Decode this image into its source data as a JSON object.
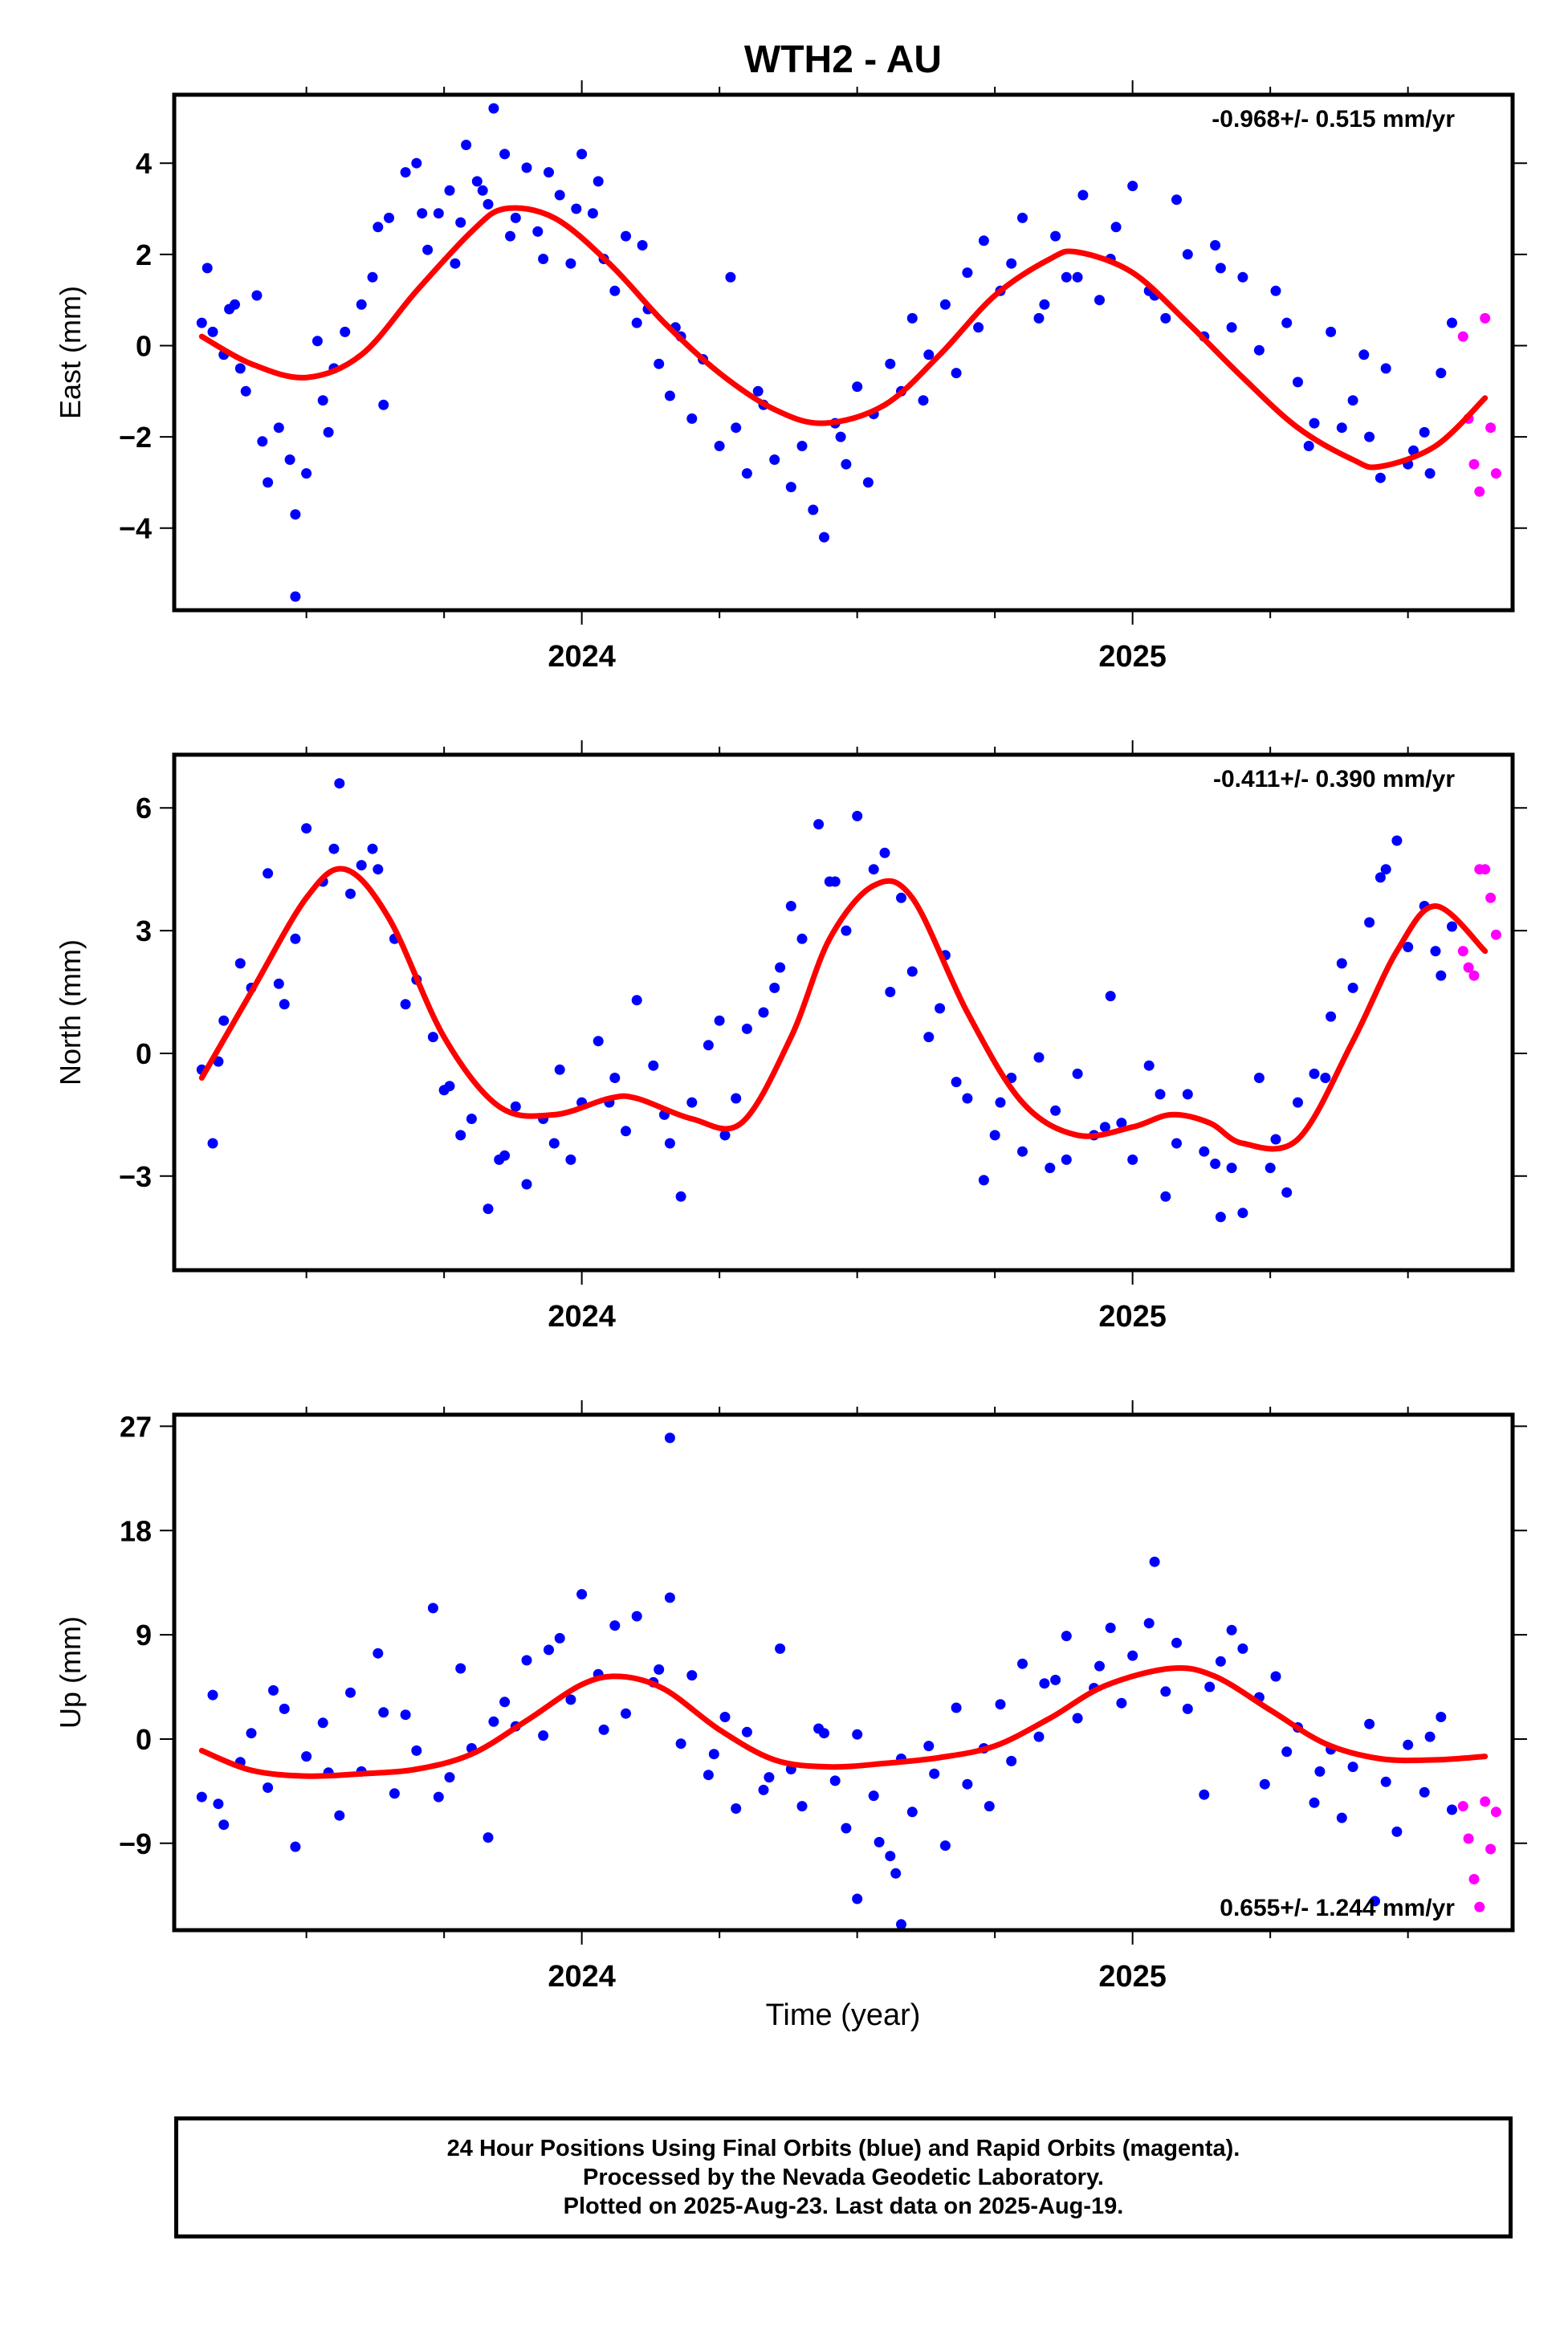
{
  "title": "WTH2 - AU",
  "xlabel": "Time (year)",
  "footer": {
    "line1": "24 Hour Positions Using Final Orbits (blue) and Rapid Orbits (magenta).",
    "line2": "Processed by the Nevada Geodetic Laboratory.",
    "line3": "Plotted on 2025-Aug-23. Last data on 2025-Aug-19."
  },
  "colors": {
    "final": "#0000ff",
    "rapid": "#ff00ff",
    "fit": "#ff0000",
    "axis": "#000000"
  },
  "chart_data": [
    {
      "type": "scatter",
      "component": "East",
      "ylabel": "East (mm)",
      "rate": "-0.968+/- 0.515 mm/yr",
      "rate_position": "top-right",
      "xlim": [
        2023.26,
        2025.69
      ],
      "ylim": [
        -5.8,
        5.5
      ],
      "yticks": [
        -4,
        -2,
        0,
        2,
        4
      ],
      "yticklabels": [
        "−4",
        "−2",
        "0",
        "2",
        "4"
      ],
      "xticks": [
        2024,
        2025
      ],
      "xticklabels": [
        "2024",
        "2025"
      ],
      "fit_curve": {
        "x": [
          2023.31,
          2023.4,
          2023.5,
          2023.6,
          2023.7,
          2023.8,
          2023.86,
          2023.95,
          2024.05,
          2024.15,
          2024.25,
          2024.35,
          2024.44,
          2024.55,
          2024.65,
          2024.75,
          2024.85,
          2024.9,
          2025.0,
          2025.1,
          2025.2,
          2025.3,
          2025.4,
          2025.45,
          2025.55,
          2025.64
        ],
        "y": [
          0.2,
          -0.4,
          -0.7,
          -0.2,
          1.2,
          2.5,
          3.0,
          2.8,
          1.8,
          0.5,
          -0.6,
          -1.4,
          -1.7,
          -1.3,
          -0.2,
          1.1,
          1.9,
          2.05,
          1.6,
          0.5,
          -0.7,
          -1.8,
          -2.5,
          -2.65,
          -2.2,
          -1.15
        ]
      },
      "final_series": {
        "x": [
          2023.31,
          2023.32,
          2023.33,
          2023.35,
          2023.37,
          2023.38,
          2023.39,
          2023.42,
          2023.43,
          2023.45,
          2023.47,
          2023.48,
          2023.5,
          2023.52,
          2023.53,
          2023.55,
          2023.57,
          2023.6,
          2023.62,
          2023.63,
          2023.65,
          2023.68,
          2023.7,
          2023.72,
          2023.74,
          2023.76,
          2023.78,
          2023.79,
          2023.81,
          2023.83,
          2023.84,
          2023.86,
          2023.88,
          2023.9,
          2023.92,
          2023.94,
          2023.96,
          2023.98,
          2024.0,
          2024.02,
          2024.04,
          2024.06,
          2024.08,
          2024.1,
          2024.12,
          2024.14,
          2024.16,
          2024.18,
          2024.2,
          2024.22,
          2024.25,
          2024.28,
          2024.3,
          2024.32,
          2024.35,
          2024.38,
          2024.4,
          2024.42,
          2024.44,
          2024.46,
          2024.48,
          2024.5,
          2024.53,
          2024.56,
          2024.6,
          2024.63,
          2024.66,
          2024.7,
          2024.73,
          2024.76,
          2024.8,
          2024.83,
          2024.86,
          2024.88,
          2024.91,
          2024.94,
          2024.97,
          2025.0,
          2025.03,
          2025.06,
          2025.1,
          2025.13,
          2025.16,
          2025.2,
          2025.23,
          2025.26,
          2025.3,
          2025.33,
          2025.36,
          2025.4,
          2025.43,
          2025.46,
          2025.5,
          2025.53,
          2025.56,
          2025.58,
          2025.45,
          2023.48,
          2023.64,
          2023.77,
          2023.87,
          2023.99,
          2024.11,
          2024.27,
          2024.47,
          2024.58,
          2024.68,
          2024.78,
          2024.9,
          2025.04,
          2025.15,
          2025.28,
          2025.38,
          2025.51,
          2023.36,
          2023.41,
          2023.54,
          2023.71,
          2023.82,
          2023.93,
          2024.03,
          2024.17,
          2024.33,
          2024.52,
          2024.62,
          2024.72,
          2024.84,
          2024.96,
          2025.08,
          2025.18,
          2025.32,
          2025.42,
          2025.54
        ],
        "y": [
          0.5,
          1.7,
          0.3,
          -0.2,
          0.9,
          -0.5,
          -1.0,
          -2.1,
          -3.0,
          -1.8,
          -2.5,
          -5.5,
          -2.8,
          0.1,
          -1.2,
          -0.5,
          0.3,
          0.9,
          1.5,
          2.6,
          2.8,
          3.8,
          4.0,
          2.1,
          2.9,
          3.4,
          2.7,
          4.4,
          3.6,
          3.1,
          5.2,
          4.2,
          2.8,
          3.9,
          2.5,
          3.8,
          3.3,
          1.8,
          4.2,
          2.9,
          1.9,
          1.2,
          2.4,
          0.5,
          0.8,
          -0.4,
          -1.1,
          0.2,
          -1.6,
          -0.3,
          -2.2,
          -1.8,
          -2.8,
          -1.0,
          -2.5,
          -3.1,
          -2.2,
          -3.6,
          -4.2,
          -1.7,
          -2.6,
          -0.9,
          -1.5,
          -0.4,
          0.6,
          -0.2,
          0.9,
          1.6,
          2.3,
          1.2,
          2.8,
          0.6,
          2.4,
          1.5,
          3.3,
          1.0,
          2.6,
          3.5,
          1.2,
          0.6,
          2.0,
          0.2,
          1.7,
          1.5,
          -0.1,
          1.2,
          -0.8,
          -1.7,
          0.3,
          -1.2,
          -2.0,
          -0.5,
          -2.6,
          -1.9,
          -0.6,
          0.5,
          -2.9,
          -3.7,
          -1.3,
          1.8,
          2.4,
          3.0,
          2.2,
          1.5,
          -2.0,
          -1.0,
          -0.6,
          1.8,
          1.5,
          1.1,
          2.2,
          0.5,
          -1.8,
          -2.3,
          0.8,
          1.1,
          -1.9,
          2.9,
          3.4,
          1.9,
          3.6,
          0.4,
          -1.3,
          -3.0,
          -1.2,
          0.4,
          0.9,
          1.9,
          3.2,
          0.4,
          -2.2,
          -0.2,
          -2.8
        ]
      },
      "rapid_series": {
        "x": [
          2025.6,
          2025.61,
          2025.62,
          2025.63,
          2025.64,
          2025.65,
          2025.66
        ],
        "y": [
          0.2,
          -1.6,
          -2.6,
          -3.2,
          0.6,
          -1.8,
          -2.8
        ]
      }
    },
    {
      "type": "scatter",
      "component": "North",
      "ylabel": "North (mm)",
      "rate": "-0.411+/- 0.390 mm/yr",
      "rate_position": "top-right",
      "xlim": [
        2023.26,
        2025.69
      ],
      "ylim": [
        -5.3,
        7.3
      ],
      "yticks": [
        -3,
        0,
        3,
        6
      ],
      "yticklabels": [
        "−3",
        "0",
        "3",
        "6"
      ],
      "xticks": [
        2024,
        2025
      ],
      "xticklabels": [
        "2024",
        "2025"
      ],
      "fit_curve": {
        "x": [
          2023.31,
          2023.4,
          2023.5,
          2023.57,
          2023.65,
          2023.75,
          2023.85,
          2023.95,
          2024.05,
          2024.1,
          2024.2,
          2024.29,
          2024.38,
          2024.45,
          2024.53,
          2024.6,
          2024.7,
          2024.8,
          2024.9,
          2025.0,
          2025.07,
          2025.14,
          2025.2,
          2025.3,
          2025.4,
          2025.48,
          2025.55,
          2025.64
        ],
        "y": [
          -0.6,
          1.5,
          3.8,
          4.5,
          3.3,
          0.4,
          -1.3,
          -1.5,
          -1.1,
          -1.1,
          -1.6,
          -1.7,
          0.4,
          2.8,
          4.1,
          3.8,
          1.0,
          -1.2,
          -2.0,
          -1.8,
          -1.5,
          -1.7,
          -2.2,
          -2.1,
          0.3,
          2.5,
          3.6,
          2.5
        ]
      },
      "final_series": {
        "x": [
          2023.31,
          2023.33,
          2023.35,
          2023.38,
          2023.4,
          2023.43,
          2023.46,
          2023.48,
          2023.5,
          2023.53,
          2023.56,
          2023.58,
          2023.6,
          2023.63,
          2023.66,
          2023.68,
          2023.7,
          2023.73,
          2023.76,
          2023.78,
          2023.8,
          2023.83,
          2023.86,
          2023.88,
          2023.9,
          2023.93,
          2023.96,
          2023.98,
          2024.0,
          2024.03,
          2024.06,
          2024.08,
          2024.1,
          2024.13,
          2024.16,
          2024.18,
          2024.2,
          2024.23,
          2024.26,
          2024.28,
          2024.3,
          2024.33,
          2024.36,
          2024.38,
          2024.4,
          2024.43,
          2024.46,
          2024.48,
          2024.5,
          2024.53,
          2024.56,
          2024.58,
          2024.6,
          2024.63,
          2024.66,
          2024.68,
          2024.7,
          2024.73,
          2024.76,
          2024.78,
          2024.8,
          2024.83,
          2024.86,
          2024.88,
          2024.9,
          2024.93,
          2024.96,
          2024.98,
          2025.0,
          2025.03,
          2025.06,
          2025.08,
          2025.1,
          2025.13,
          2025.16,
          2025.18,
          2025.2,
          2025.23,
          2025.26,
          2025.28,
          2025.3,
          2025.33,
          2025.36,
          2025.38,
          2025.4,
          2025.43,
          2025.46,
          2025.48,
          2025.5,
          2025.53,
          2025.56,
          2025.58,
          2023.34,
          2023.45,
          2023.55,
          2023.62,
          2023.75,
          2023.85,
          2023.95,
          2024.05,
          2024.15,
          2024.25,
          2024.35,
          2024.45,
          2024.55,
          2024.65,
          2024.75,
          2024.85,
          2024.95,
          2025.05,
          2025.15,
          2025.25,
          2025.35,
          2025.45,
          2025.55
        ],
        "y": [
          -0.4,
          -2.2,
          0.8,
          2.2,
          1.6,
          4.4,
          1.2,
          2.8,
          5.5,
          4.2,
          6.6,
          3.9,
          4.6,
          4.5,
          2.8,
          1.2,
          1.8,
          0.4,
          -0.8,
          -2.0,
          -1.6,
          -3.8,
          -2.5,
          -1.3,
          -3.2,
          -1.6,
          -0.4,
          -2.6,
          -1.2,
          0.3,
          -0.6,
          -1.9,
          1.3,
          -0.3,
          -2.2,
          -3.5,
          -1.2,
          0.2,
          -2.0,
          -1.1,
          0.6,
          1.0,
          2.1,
          3.6,
          2.8,
          5.6,
          4.2,
          3.0,
          5.8,
          4.5,
          1.5,
          3.8,
          2.0,
          0.4,
          2.4,
          -0.7,
          -1.1,
          -3.1,
          -1.2,
          -0.6,
          -2.4,
          -0.1,
          -1.4,
          -2.6,
          -0.5,
          -2.0,
          1.4,
          -1.7,
          -2.6,
          -0.3,
          -3.5,
          -2.2,
          -1.0,
          -2.4,
          -4.0,
          -2.8,
          -3.9,
          -0.6,
          -2.1,
          -3.4,
          -1.2,
          -0.5,
          0.9,
          2.2,
          1.6,
          3.2,
          4.5,
          5.2,
          2.6,
          3.6,
          1.9,
          3.1,
          -0.2,
          1.7,
          5.0,
          5.0,
          -0.9,
          -2.6,
          -2.2,
          -1.2,
          -1.5,
          0.8,
          1.6,
          4.2,
          4.9,
          1.1,
          -2.0,
          -2.8,
          -1.8,
          -1.0,
          -2.7,
          -2.8,
          -0.6,
          4.3,
          2.5
        ]
      },
      "rapid_series": {
        "x": [
          2025.6,
          2025.61,
          2025.62,
          2025.63,
          2025.64,
          2025.65,
          2025.66
        ],
        "y": [
          2.5,
          2.1,
          1.9,
          4.5,
          4.5,
          3.8,
          2.9
        ]
      }
    },
    {
      "type": "scatter",
      "component": "Up",
      "ylabel": "Up (mm)",
      "rate": "0.655+/- 1.244 mm/yr",
      "rate_position": "bottom-right",
      "xlim": [
        2023.26,
        2025.69
      ],
      "ylim": [
        -16.5,
        28
      ],
      "yticks": [
        -9,
        0,
        9,
        18,
        27
      ],
      "yticklabels": [
        "−9",
        "0",
        "9",
        "18",
        "27"
      ],
      "xticks": [
        2024,
        2025
      ],
      "xticklabels": [
        "2024",
        "2025"
      ],
      "fit_curve": {
        "x": [
          2023.31,
          2023.4,
          2023.5,
          2023.6,
          2023.7,
          2023.8,
          2023.9,
          2024.0,
          2024.07,
          2024.15,
          2024.25,
          2024.35,
          2024.45,
          2024.55,
          2024.65,
          2024.75,
          2024.85,
          2024.95,
          2025.07,
          2025.15,
          2025.25,
          2025.35,
          2025.45,
          2025.55,
          2025.64
        ],
        "y": [
          -1.0,
          -2.7,
          -3.2,
          -3.0,
          -2.6,
          -1.3,
          1.6,
          4.7,
          5.4,
          4.3,
          0.8,
          -1.8,
          -2.4,
          -2.1,
          -1.6,
          -0.6,
          1.8,
          4.6,
          6.1,
          5.4,
          2.5,
          -0.4,
          -1.7,
          -1.8,
          -1.5
        ]
      },
      "final_series": {
        "x": [
          2023.31,
          2023.33,
          2023.35,
          2023.38,
          2023.4,
          2023.43,
          2023.46,
          2023.48,
          2023.5,
          2023.53,
          2023.56,
          2023.58,
          2023.6,
          2023.63,
          2023.66,
          2023.68,
          2023.7,
          2023.73,
          2023.76,
          2023.78,
          2023.8,
          2023.83,
          2023.86,
          2023.88,
          2023.9,
          2023.93,
          2023.96,
          2023.98,
          2024.0,
          2024.03,
          2024.06,
          2024.08,
          2024.1,
          2024.13,
          2024.16,
          2024.18,
          2024.2,
          2024.23,
          2024.26,
          2024.28,
          2024.3,
          2024.33,
          2024.36,
          2024.38,
          2024.4,
          2024.43,
          2024.46,
          2024.48,
          2024.5,
          2024.53,
          2024.56,
          2024.58,
          2024.6,
          2024.63,
          2024.66,
          2024.68,
          2024.7,
          2024.73,
          2024.76,
          2024.78,
          2024.8,
          2024.83,
          2024.86,
          2024.88,
          2024.9,
          2024.93,
          2024.96,
          2024.98,
          2025.0,
          2025.03,
          2025.06,
          2025.08,
          2025.1,
          2025.13,
          2025.16,
          2025.18,
          2025.2,
          2025.23,
          2025.26,
          2025.28,
          2025.3,
          2025.33,
          2025.36,
          2025.38,
          2025.4,
          2025.43,
          2025.46,
          2025.48,
          2025.5,
          2025.53,
          2025.56,
          2025.58,
          2024.16,
          2024.5,
          2024.57,
          2024.58,
          2023.34,
          2023.44,
          2023.54,
          2023.64,
          2023.74,
          2023.84,
          2023.94,
          2024.04,
          2024.14,
          2024.24,
          2024.34,
          2024.44,
          2024.54,
          2024.64,
          2024.74,
          2024.84,
          2024.94,
          2025.04,
          2025.14,
          2025.24,
          2025.34,
          2025.44,
          2025.54
        ],
        "y": [
          -5.0,
          3.8,
          -7.4,
          -2.0,
          0.5,
          -4.2,
          2.6,
          -9.3,
          -1.5,
          1.4,
          -6.6,
          4.0,
          -2.8,
          7.4,
          -4.7,
          2.1,
          -1.0,
          11.3,
          -3.3,
          6.1,
          -0.8,
          -8.5,
          3.2,
          1.1,
          6.8,
          0.3,
          8.7,
          3.4,
          12.5,
          5.6,
          9.8,
          2.2,
          10.6,
          4.9,
          12.2,
          -0.4,
          5.5,
          -3.1,
          1.9,
          -6.0,
          0.6,
          -4.4,
          7.8,
          -2.6,
          -5.8,
          0.9,
          -3.6,
          -7.7,
          0.4,
          -4.9,
          -10.1,
          -1.7,
          -6.3,
          -0.6,
          -9.2,
          2.7,
          -3.9,
          -0.8,
          3.0,
          -1.9,
          6.5,
          0.2,
          5.1,
          8.9,
          1.8,
          4.4,
          9.6,
          3.1,
          7.2,
          10.0,
          4.1,
          8.3,
          2.6,
          -4.8,
          6.7,
          9.4,
          7.8,
          3.6,
          5.4,
          -1.1,
          1.0,
          -5.5,
          -0.9,
          -6.8,
          -2.4,
          1.3,
          -3.7,
          -8.0,
          -0.5,
          -4.6,
          1.9,
          -6.1,
          26.0,
          -13.8,
          -11.6,
          -16.0,
          -5.6,
          4.2,
          -2.9,
          2.3,
          -5.0,
          1.5,
          7.7,
          0.8,
          6.0,
          -1.3,
          -3.3,
          0.5,
          -8.9,
          -3.0,
          -5.8,
          4.8,
          6.3,
          15.3,
          4.5,
          -3.9,
          -2.8,
          -14.0,
          0.2
        ]
      },
      "rapid_series": {
        "x": [
          2025.6,
          2025.61,
          2025.62,
          2025.63,
          2025.64,
          2025.65,
          2025.66
        ],
        "y": [
          -5.8,
          -8.6,
          -12.1,
          -14.5,
          -5.4,
          -9.5,
          -6.3
        ]
      }
    }
  ]
}
